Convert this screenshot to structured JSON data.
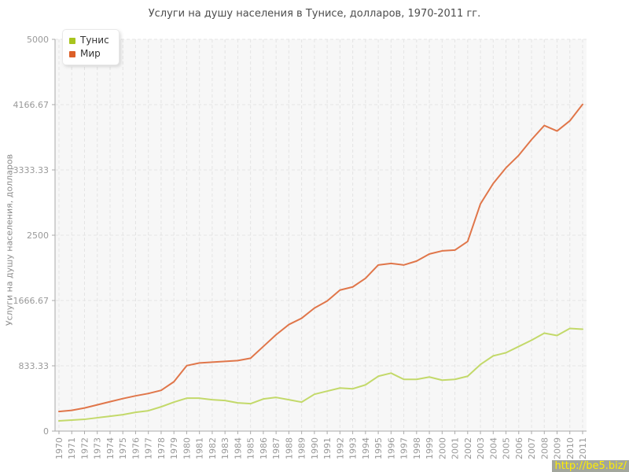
{
  "chart_data": {
    "type": "line",
    "title": "Услуги на душу населения в Тунисе, долларов, 1970-2011 гг.",
    "ylabel": "Услуги на душу населения, долларов",
    "xlabel": "",
    "ylim": [
      0,
      5000
    ],
    "yticks": [
      0,
      833.33,
      1666.67,
      2500,
      3333.33,
      4166.67,
      5000
    ],
    "ytick_labels": [
      "0",
      "833.33",
      "1666.67",
      "2500",
      "3333.33",
      "4166.67",
      "5000"
    ],
    "grid": true,
    "grid_style": "dashed",
    "legend_position": "top-left",
    "x": [
      1970,
      1971,
      1972,
      1973,
      1974,
      1975,
      1976,
      1977,
      1978,
      1979,
      1980,
      1981,
      1982,
      1983,
      1984,
      1985,
      1986,
      1987,
      1988,
      1989,
      1990,
      1991,
      1992,
      1993,
      1994,
      1995,
      1996,
      1997,
      1998,
      1999,
      2000,
      2001,
      2002,
      2003,
      2004,
      2005,
      2006,
      2007,
      2008,
      2009,
      2010,
      2011
    ],
    "series": [
      {
        "name": "Тунис",
        "color": "#c3d96a",
        "swatch": "#a8c41e",
        "values": [
          130,
          140,
          150,
          170,
          190,
          210,
          240,
          260,
          310,
          370,
          420,
          420,
          400,
          390,
          360,
          350,
          410,
          430,
          400,
          370,
          470,
          510,
          550,
          540,
          590,
          700,
          740,
          660,
          660,
          690,
          650,
          660,
          700,
          850,
          960,
          1000,
          1080,
          1160,
          1250,
          1220,
          1310,
          1300
        ]
      },
      {
        "name": "Мир",
        "color": "#e0764a",
        "swatch": "#dc5f28",
        "values": [
          250,
          265,
          295,
          335,
          375,
          415,
          450,
          480,
          520,
          630,
          835,
          870,
          880,
          890,
          900,
          930,
          1080,
          1230,
          1360,
          1440,
          1570,
          1660,
          1800,
          1840,
          1950,
          2120,
          2140,
          2120,
          2170,
          2260,
          2300,
          2310,
          2420,
          2900,
          3160,
          3360,
          3520,
          3720,
          3900,
          3830,
          3960,
          4170
        ]
      }
    ],
    "colors": {
      "plot_background": "#f7f7f7",
      "gridline": "#e4e4e4",
      "axis": "#aaaaaa",
      "tick_label": "#999999",
      "title_text": "#4d4d4d"
    }
  },
  "watermark": {
    "text": "http://be5.biz/",
    "bg": "#a2a69c",
    "color": "#ffee00"
  }
}
